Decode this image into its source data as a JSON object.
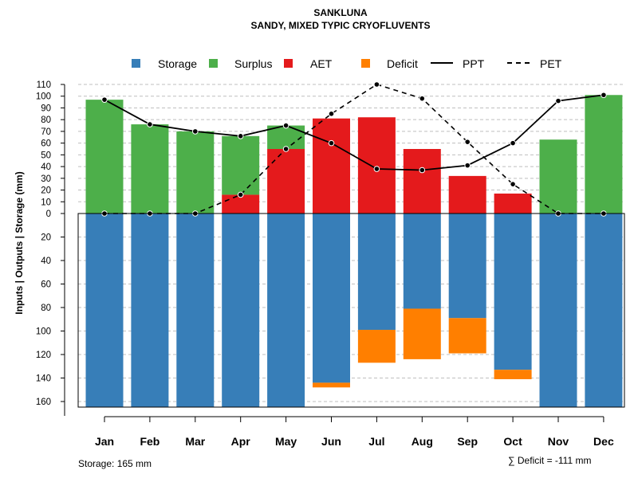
{
  "chart_data": {
    "type": "bar",
    "title": "SANKLUNA",
    "subtitle": "SANDY, MIXED TYPIC CRYOFLUVENTS",
    "ylabel": "Inputs | Outputs | Storage    (mm)",
    "categories": [
      "Jan",
      "Feb",
      "Mar",
      "Apr",
      "May",
      "Jun",
      "Jul",
      "Aug",
      "Sep",
      "Oct",
      "Nov",
      "Dec"
    ],
    "upper_ticks": [
      "0",
      "10",
      "20",
      "30",
      "40",
      "50",
      "60",
      "70",
      "80",
      "90",
      "100",
      "110"
    ],
    "lower_ticks": [
      "20",
      "40",
      "60",
      "80",
      "100",
      "120",
      "140",
      "160"
    ],
    "ylim_upper": [
      0,
      110
    ],
    "ylim_lower": [
      0,
      165
    ],
    "legend": {
      "storage": "Storage",
      "surplus": "Surplus",
      "aet": "AET",
      "deficit": "Deficit",
      "ppt": "PPT",
      "pet": "PET"
    },
    "colors": {
      "storage": "#377eb8",
      "surplus": "#4daf4a",
      "aet": "#e41a1c",
      "deficit": "#ff7f00",
      "line": "#000000",
      "grid": "#bfbfbf"
    },
    "series": {
      "aet": [
        0,
        0,
        0,
        16,
        55,
        81,
        82,
        55,
        32,
        17,
        0,
        0
      ],
      "surplus": [
        97,
        76,
        70,
        50,
        20,
        0,
        0,
        0,
        0,
        0,
        63,
        101
      ],
      "storage": [
        165,
        165,
        165,
        165,
        165,
        144,
        99,
        81,
        89,
        133,
        165,
        165
      ],
      "deficit": [
        0,
        0,
        0,
        0,
        0,
        4,
        28,
        43,
        30,
        8,
        0,
        0
      ],
      "ppt": [
        97,
        76,
        70,
        66,
        75,
        60,
        38,
        37,
        41,
        60,
        96,
        101
      ],
      "pet": [
        0,
        0,
        0,
        16,
        55,
        85,
        110,
        98,
        61,
        25,
        0,
        0
      ]
    },
    "notes": {
      "storage": "Storage: 165 mm",
      "deficit": "∑ Deficit = -111 mm"
    }
  }
}
